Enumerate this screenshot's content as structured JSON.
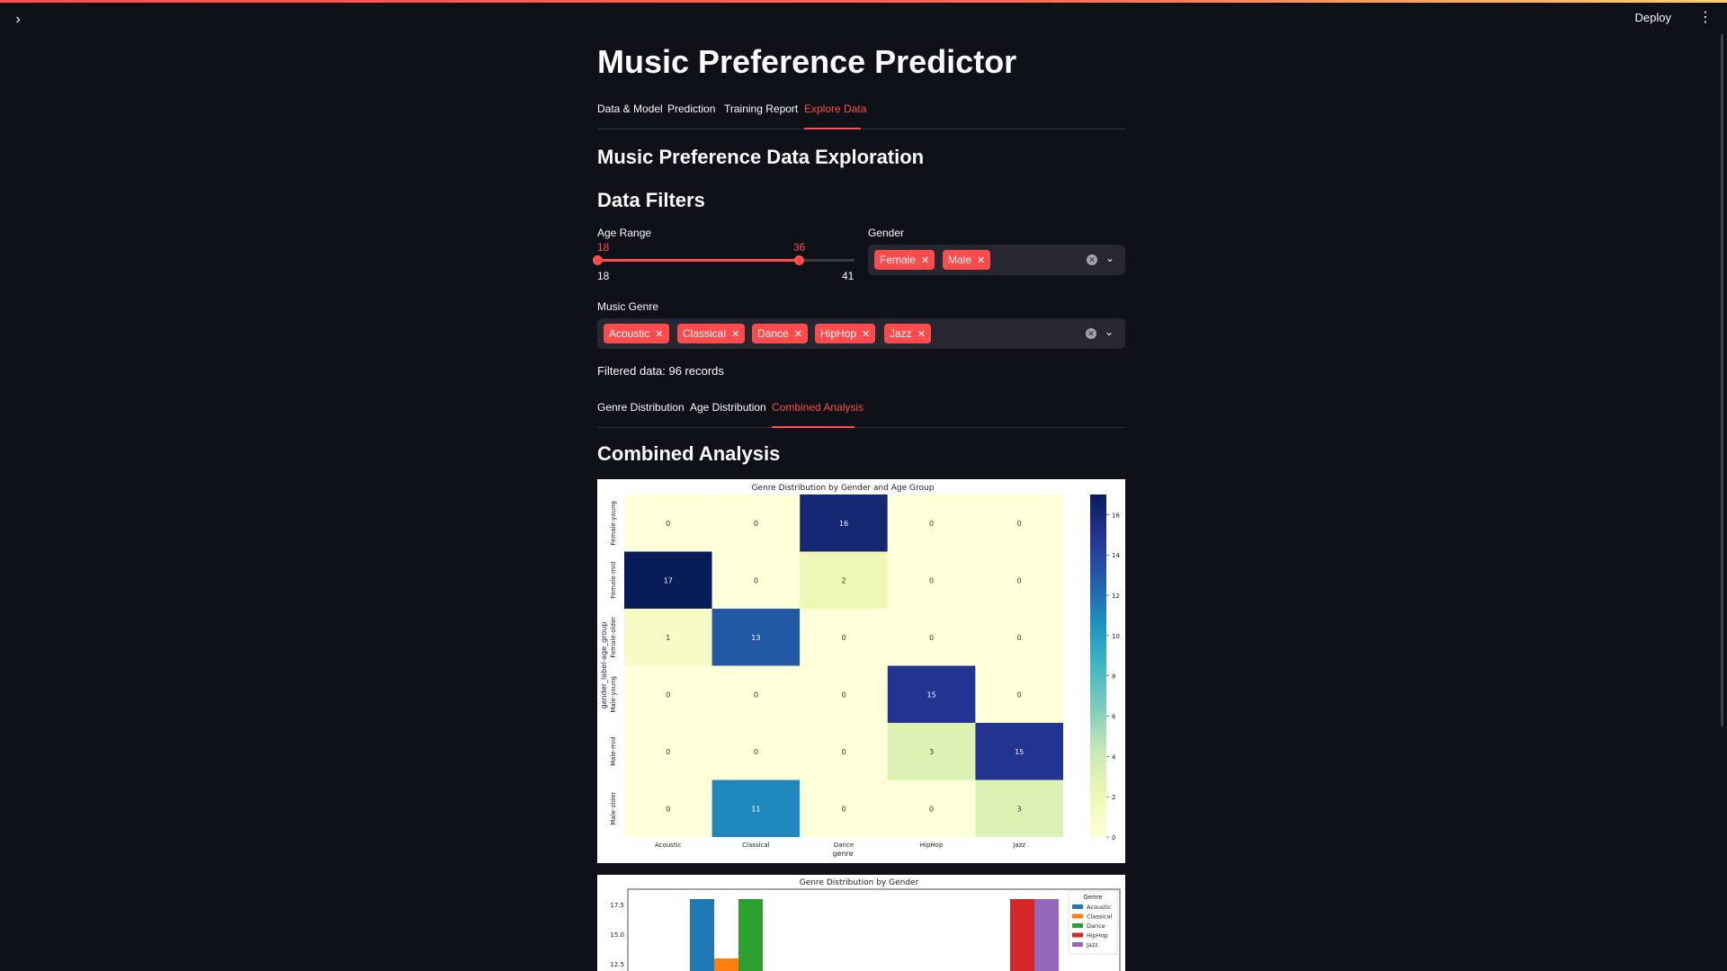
{
  "header": {
    "deploy_label": "Deploy"
  },
  "app": {
    "title": "Music Preference Predictor"
  },
  "main_tabs": [
    {
      "label": "Data & Model"
    },
    {
      "label": "Prediction"
    },
    {
      "label": "Training Report"
    },
    {
      "label": "Explore Data",
      "active": true
    }
  ],
  "section": {
    "title": "Music Preference Data Exploration",
    "filters_title": "Data Filters"
  },
  "filters": {
    "age": {
      "label": "Age Range",
      "min": 18,
      "max": 41,
      "low": 18,
      "high": 36,
      "min_label": "18",
      "max_label": "41",
      "low_label": "18",
      "high_label": "36"
    },
    "gender": {
      "label": "Gender",
      "selected": [
        "Female",
        "Male"
      ]
    },
    "genre": {
      "label": "Music Genre",
      "selected": [
        "Acoustic",
        "Classical",
        "Dance",
        "HipHop",
        "Jazz"
      ]
    }
  },
  "records_text": "Filtered data: 96 records",
  "sub_tabs": [
    {
      "label": "Genre Distribution"
    },
    {
      "label": "Age Distribution"
    },
    {
      "label": "Combined Analysis",
      "active": true
    }
  ],
  "analysis_title": "Combined Analysis",
  "chart_data": [
    {
      "type": "heatmap",
      "title": "Genre Distribution by Gender and Age Group",
      "xlabel": "genre",
      "ylabel": "gender_label-age_group",
      "x": [
        "Acoustic",
        "Classical",
        "Dance",
        "HipHop",
        "Jazz"
      ],
      "y": [
        "Female-young",
        "Female-mid",
        "Female-older",
        "Male-young",
        "Male-mid",
        "Male-older"
      ],
      "values": [
        [
          0,
          0,
          16,
          0,
          0
        ],
        [
          17,
          0,
          2,
          0,
          0
        ],
        [
          1,
          13,
          0,
          0,
          0
        ],
        [
          0,
          0,
          0,
          15,
          0
        ],
        [
          0,
          0,
          0,
          3,
          15
        ],
        [
          0,
          11,
          0,
          0,
          3
        ]
      ],
      "colormap": "YlGnBu",
      "colorbar_ticks": [
        0,
        2,
        4,
        6,
        8,
        10,
        12,
        14,
        16
      ],
      "colorbar_range": [
        0,
        17
      ]
    },
    {
      "type": "bar",
      "title": "Genre Distribution by Gender",
      "legend_title": "Genre",
      "legend_position": "top-right",
      "y_ticks_visible": [
        "17.5",
        "15.0",
        "12.5"
      ],
      "series": [
        {
          "name": "Acoustic",
          "color": "#1f77b4"
        },
        {
          "name": "Classical",
          "color": "#ff7f0e"
        },
        {
          "name": "Dance",
          "color": "#2ca02c"
        },
        {
          "name": "HipHop",
          "color": "#d62728"
        },
        {
          "name": "Jazz",
          "color": "#9467bd"
        }
      ]
    }
  ]
}
